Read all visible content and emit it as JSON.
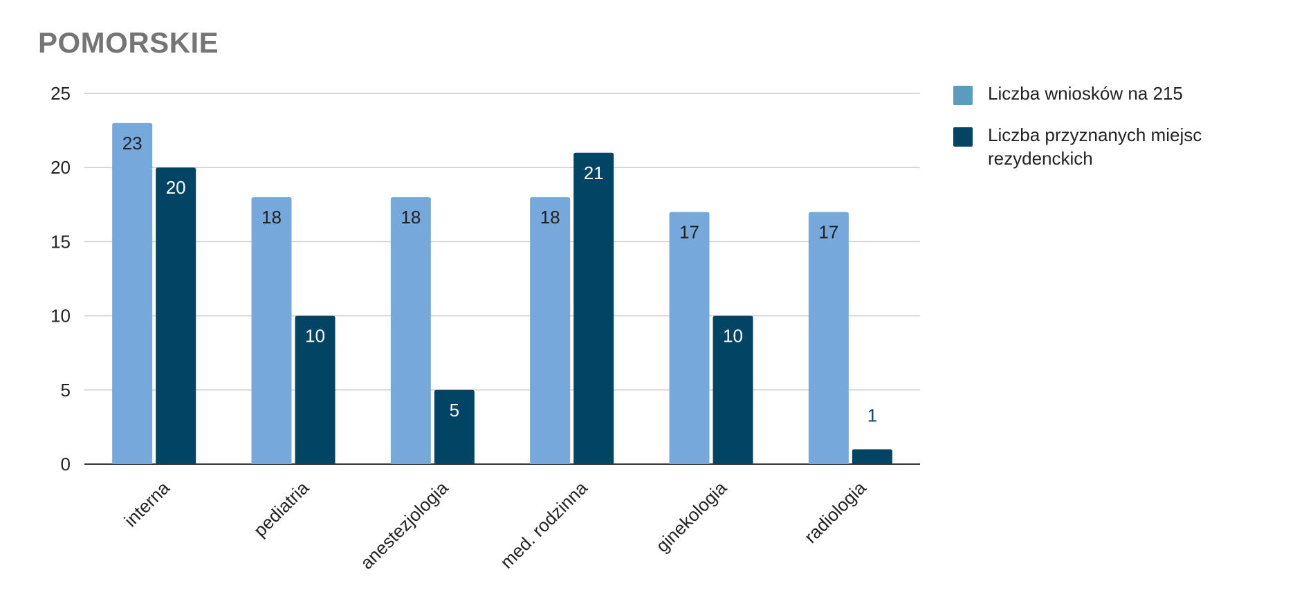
{
  "chart_data": {
    "type": "bar",
    "title": "POMORSKIE",
    "categories": [
      "interna",
      "pediatria",
      "anestezjologia",
      "med. rodzinna",
      "ginekologia",
      "radiologia"
    ],
    "series": [
      {
        "name": "Liczba wniosków na 215",
        "values": [
          23,
          18,
          18,
          18,
          17,
          17
        ],
        "color": "#76a8dc",
        "legend_color": "#5b9bbd"
      },
      {
        "name": "Liczba przyznanych miejsc rezydenckich",
        "values": [
          20,
          10,
          5,
          21,
          10,
          1
        ],
        "color": "#014463"
      }
    ],
    "y_ticks": [
      "0",
      "5",
      "10",
      "15",
      "20",
      "25"
    ],
    "ylim": [
      0,
      25
    ],
    "grid": true,
    "legend_position": "right",
    "data_label_color_light": "#222222",
    "data_label_color_dark": "#ffffff",
    "outside_label_color": "#0f4a6b"
  }
}
